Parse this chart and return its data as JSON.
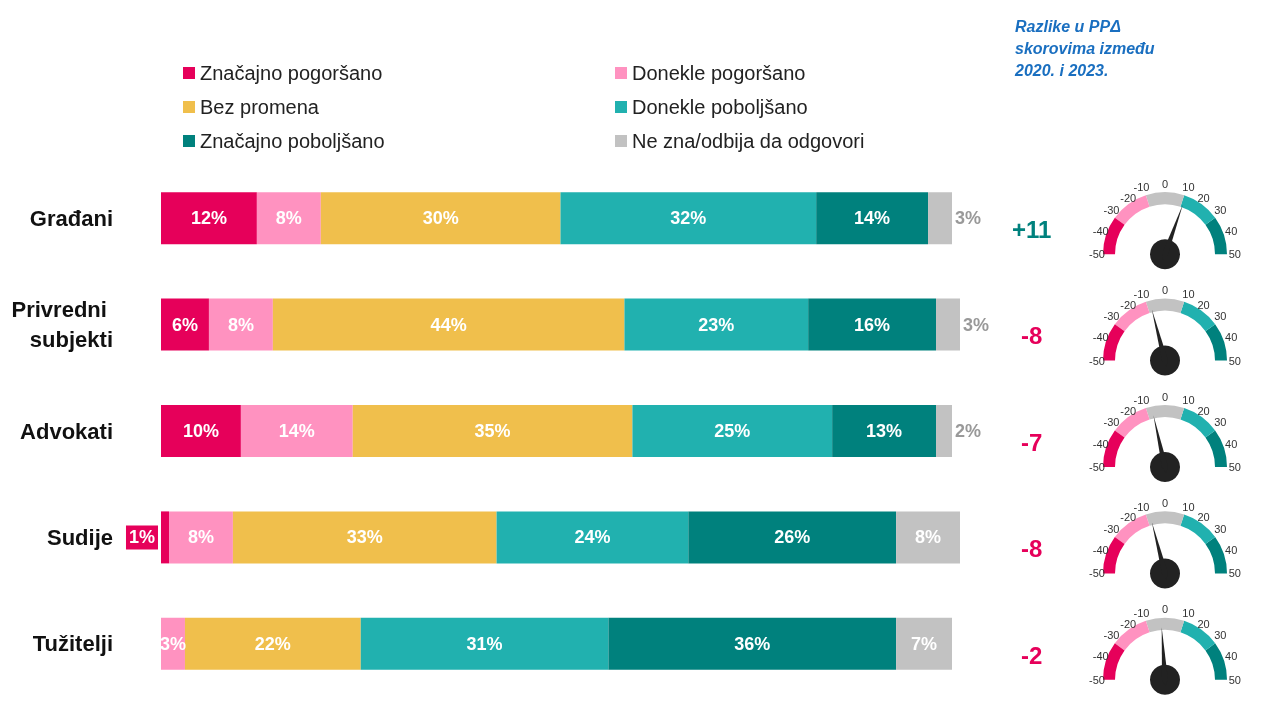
{
  "chart_data": [
    {
      "type": "bar",
      "orientation": "horizontal",
      "stacked": true,
      "legend": "top left",
      "grid": false,
      "categories": [
        "Građani",
        "Privredni subjekti",
        "Advokati",
        "Sudije",
        "Tužitelji"
      ],
      "series": [
        {
          "name": "Značajno pogoršano",
          "color": "#e6005a",
          "values": [
            12,
            6,
            10,
            1,
            null
          ],
          "value_labels": [
            "12%",
            "6%",
            "10%",
            "1%",
            null
          ]
        },
        {
          "name": "Donekle pogoršano",
          "color": "#ff92c0",
          "values": [
            8,
            8,
            14,
            8,
            3
          ],
          "value_labels": [
            "8%",
            "8%",
            "14%",
            "8%",
            "3%"
          ]
        },
        {
          "name": "Bez promena",
          "color": "#f0bf4c",
          "values": [
            30,
            44,
            35,
            33,
            22
          ],
          "value_labels": [
            "30%",
            "44%",
            "35%",
            "33%",
            "22%"
          ]
        },
        {
          "name": "Donekle poboljšano",
          "color": "#21b1af",
          "values": [
            32,
            23,
            25,
            24,
            31
          ],
          "value_labels": [
            "32%",
            "23%",
            "25%",
            "24%",
            "31%"
          ]
        },
        {
          "name": "Značajno poboljšano",
          "color": "#00817d",
          "values": [
            14,
            16,
            13,
            26,
            36
          ],
          "value_labels": [
            "14%",
            "16%",
            "13%",
            "26%",
            "36%"
          ]
        },
        {
          "name": "Ne zna/odbija da odgovori",
          "color": "#c2c2c2",
          "values": [
            3,
            3,
            2,
            8,
            7
          ],
          "value_labels": [
            "3%",
            "3%",
            "2%",
            "8%",
            "7%"
          ]
        }
      ]
    },
    {
      "type": "other",
      "title": "Razlike u PPΔ skorovima između 2020. i 2023.",
      "values": [
        11,
        -8,
        -7,
        -8,
        -2
      ],
      "value_labels": [
        "+11",
        "-8",
        "-7",
        "-8",
        "-2"
      ],
      "annotations": [
        "-50",
        "-40",
        "-30",
        "-20",
        "-10",
        "0",
        "10",
        "20",
        "30",
        "40",
        "50"
      ]
    }
  ]
}
